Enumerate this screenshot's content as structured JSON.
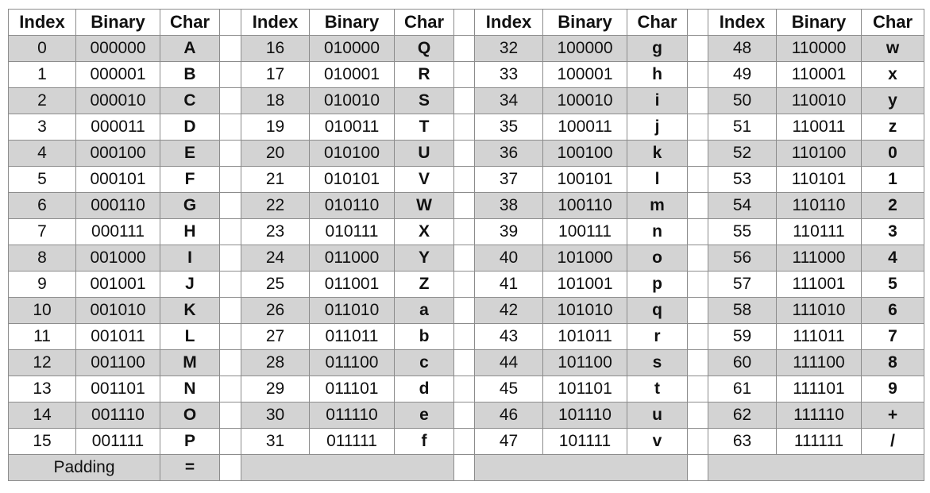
{
  "headers": {
    "index": "Index",
    "binary": "Binary",
    "char": "Char"
  },
  "colors": {
    "shade": "#d3d3d3",
    "border": "#8c8c8c",
    "text": "#111111"
  },
  "groups": [
    {
      "rows": [
        {
          "index": "0",
          "binary": "000000",
          "char": "A"
        },
        {
          "index": "1",
          "binary": "000001",
          "char": "B"
        },
        {
          "index": "2",
          "binary": "000010",
          "char": "C"
        },
        {
          "index": "3",
          "binary": "000011",
          "char": "D"
        },
        {
          "index": "4",
          "binary": "000100",
          "char": "E"
        },
        {
          "index": "5",
          "binary": "000101",
          "char": "F"
        },
        {
          "index": "6",
          "binary": "000110",
          "char": "G"
        },
        {
          "index": "7",
          "binary": "000111",
          "char": "H"
        },
        {
          "index": "8",
          "binary": "001000",
          "char": "I"
        },
        {
          "index": "9",
          "binary": "001001",
          "char": "J"
        },
        {
          "index": "10",
          "binary": "001010",
          "char": "K"
        },
        {
          "index": "11",
          "binary": "001011",
          "char": "L"
        },
        {
          "index": "12",
          "binary": "001100",
          "char": "M"
        },
        {
          "index": "13",
          "binary": "001101",
          "char": "N"
        },
        {
          "index": "14",
          "binary": "001110",
          "char": "O"
        },
        {
          "index": "15",
          "binary": "001111",
          "char": "P"
        }
      ]
    },
    {
      "rows": [
        {
          "index": "16",
          "binary": "010000",
          "char": "Q"
        },
        {
          "index": "17",
          "binary": "010001",
          "char": "R"
        },
        {
          "index": "18",
          "binary": "010010",
          "char": "S"
        },
        {
          "index": "19",
          "binary": "010011",
          "char": "T"
        },
        {
          "index": "20",
          "binary": "010100",
          "char": "U"
        },
        {
          "index": "21",
          "binary": "010101",
          "char": "V"
        },
        {
          "index": "22",
          "binary": "010110",
          "char": "W"
        },
        {
          "index": "23",
          "binary": "010111",
          "char": "X"
        },
        {
          "index": "24",
          "binary": "011000",
          "char": "Y"
        },
        {
          "index": "25",
          "binary": "011001",
          "char": "Z"
        },
        {
          "index": "26",
          "binary": "011010",
          "char": "a"
        },
        {
          "index": "27",
          "binary": "011011",
          "char": "b"
        },
        {
          "index": "28",
          "binary": "011100",
          "char": "c"
        },
        {
          "index": "29",
          "binary": "011101",
          "char": "d"
        },
        {
          "index": "30",
          "binary": "011110",
          "char": "e"
        },
        {
          "index": "31",
          "binary": "011111",
          "char": "f"
        }
      ]
    },
    {
      "rows": [
        {
          "index": "32",
          "binary": "100000",
          "char": "g"
        },
        {
          "index": "33",
          "binary": "100001",
          "char": "h"
        },
        {
          "index": "34",
          "binary": "100010",
          "char": "i"
        },
        {
          "index": "35",
          "binary": "100011",
          "char": "j"
        },
        {
          "index": "36",
          "binary": "100100",
          "char": "k"
        },
        {
          "index": "37",
          "binary": "100101",
          "char": "l"
        },
        {
          "index": "38",
          "binary": "100110",
          "char": "m"
        },
        {
          "index": "39",
          "binary": "100111",
          "char": "n"
        },
        {
          "index": "40",
          "binary": "101000",
          "char": "o"
        },
        {
          "index": "41",
          "binary": "101001",
          "char": "p"
        },
        {
          "index": "42",
          "binary": "101010",
          "char": "q"
        },
        {
          "index": "43",
          "binary": "101011",
          "char": "r"
        },
        {
          "index": "44",
          "binary": "101100",
          "char": "s"
        },
        {
          "index": "45",
          "binary": "101101",
          "char": "t"
        },
        {
          "index": "46",
          "binary": "101110",
          "char": "u"
        },
        {
          "index": "47",
          "binary": "101111",
          "char": "v"
        }
      ]
    },
    {
      "rows": [
        {
          "index": "48",
          "binary": "110000",
          "char": "w"
        },
        {
          "index": "49",
          "binary": "110001",
          "char": "x"
        },
        {
          "index": "50",
          "binary": "110010",
          "char": "y"
        },
        {
          "index": "51",
          "binary": "110011",
          "char": "z"
        },
        {
          "index": "52",
          "binary": "110100",
          "char": "0"
        },
        {
          "index": "53",
          "binary": "110101",
          "char": "1"
        },
        {
          "index": "54",
          "binary": "110110",
          "char": "2"
        },
        {
          "index": "55",
          "binary": "110111",
          "char": "3"
        },
        {
          "index": "56",
          "binary": "111000",
          "char": "4"
        },
        {
          "index": "57",
          "binary": "111001",
          "char": "5"
        },
        {
          "index": "58",
          "binary": "111010",
          "char": "6"
        },
        {
          "index": "59",
          "binary": "111011",
          "char": "7"
        },
        {
          "index": "60",
          "binary": "111100",
          "char": "8"
        },
        {
          "index": "61",
          "binary": "111101",
          "char": "9"
        },
        {
          "index": "62",
          "binary": "111110",
          "char": "+"
        },
        {
          "index": "63",
          "binary": "111111",
          "char": "/"
        }
      ]
    }
  ],
  "padding": {
    "label": "Padding",
    "char": "="
  }
}
